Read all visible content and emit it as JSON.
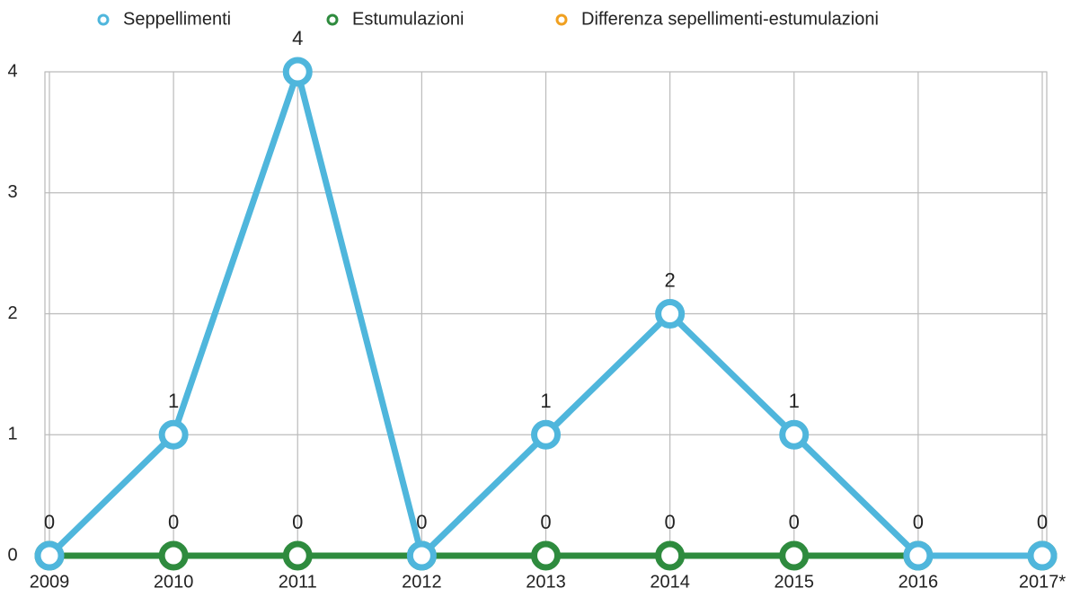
{
  "chart_data": {
    "type": "line",
    "categories": [
      "2009",
      "2010",
      "2011",
      "2012",
      "2013",
      "2014",
      "2015",
      "2016",
      "2017*"
    ],
    "series": [
      {
        "name": "Seppellimenti",
        "color": "#4fb6dc",
        "values": [
          0,
          1,
          4,
          0,
          1,
          2,
          1,
          0,
          0
        ]
      },
      {
        "name": "Estumulazioni",
        "color": "#2e8b3e",
        "values": [
          0,
          0,
          0,
          0,
          0,
          0,
          0,
          0,
          0
        ]
      },
      {
        "name": "Differenza sepellimenti-estumulazioni",
        "color": "#f0a020",
        "values": [
          null,
          null,
          null,
          null,
          null,
          null,
          null,
          null,
          null
        ]
      }
    ],
    "ylim": [
      0,
      4
    ],
    "yticks": [
      0,
      1,
      2,
      3,
      4
    ],
    "grid": true
  }
}
